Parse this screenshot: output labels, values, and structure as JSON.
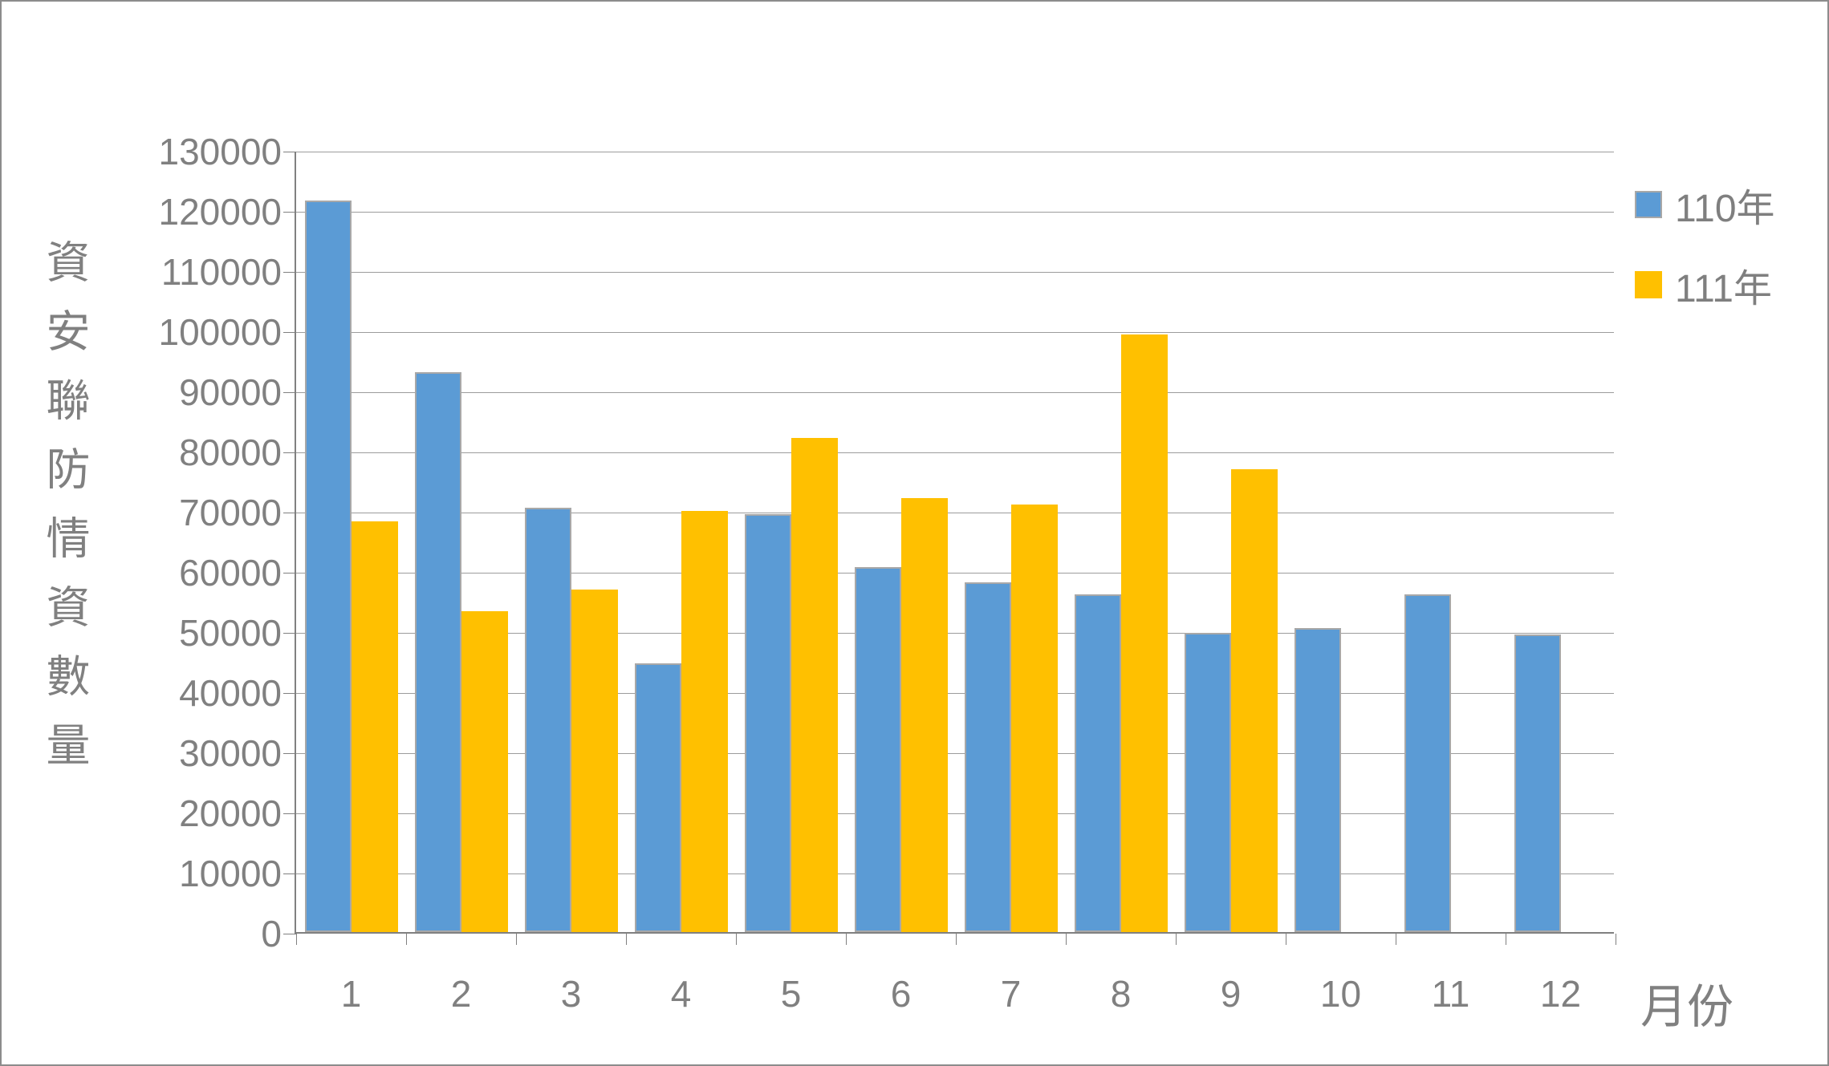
{
  "chart_data": {
    "type": "bar",
    "title": "",
    "y_axis_title": "資安聯防情資數量",
    "x_axis_title": "月份",
    "categories": [
      "1",
      "2",
      "3",
      "4",
      "5",
      "6",
      "7",
      "8",
      "9",
      "10",
      "11",
      "12"
    ],
    "series": [
      {
        "name": "110年",
        "color": "#5b9bd5",
        "values": [
          121600,
          93100,
          70500,
          44700,
          69500,
          60700,
          58100,
          56100,
          49700,
          50500,
          56200,
          49500
        ]
      },
      {
        "name": "111年",
        "color": "#ffc000",
        "values": [
          68300,
          53400,
          56900,
          70000,
          82100,
          72200,
          71100,
          99400,
          77000,
          null,
          null,
          null
        ]
      }
    ],
    "ylim": [
      0,
      130000
    ],
    "y_tick_step": 10000,
    "grid": true,
    "legend_position": "right-top"
  },
  "style_colors": {
    "axis_text": "#808080",
    "gridline": "#9c9c9c",
    "frame_border": "#8c8c8c"
  }
}
